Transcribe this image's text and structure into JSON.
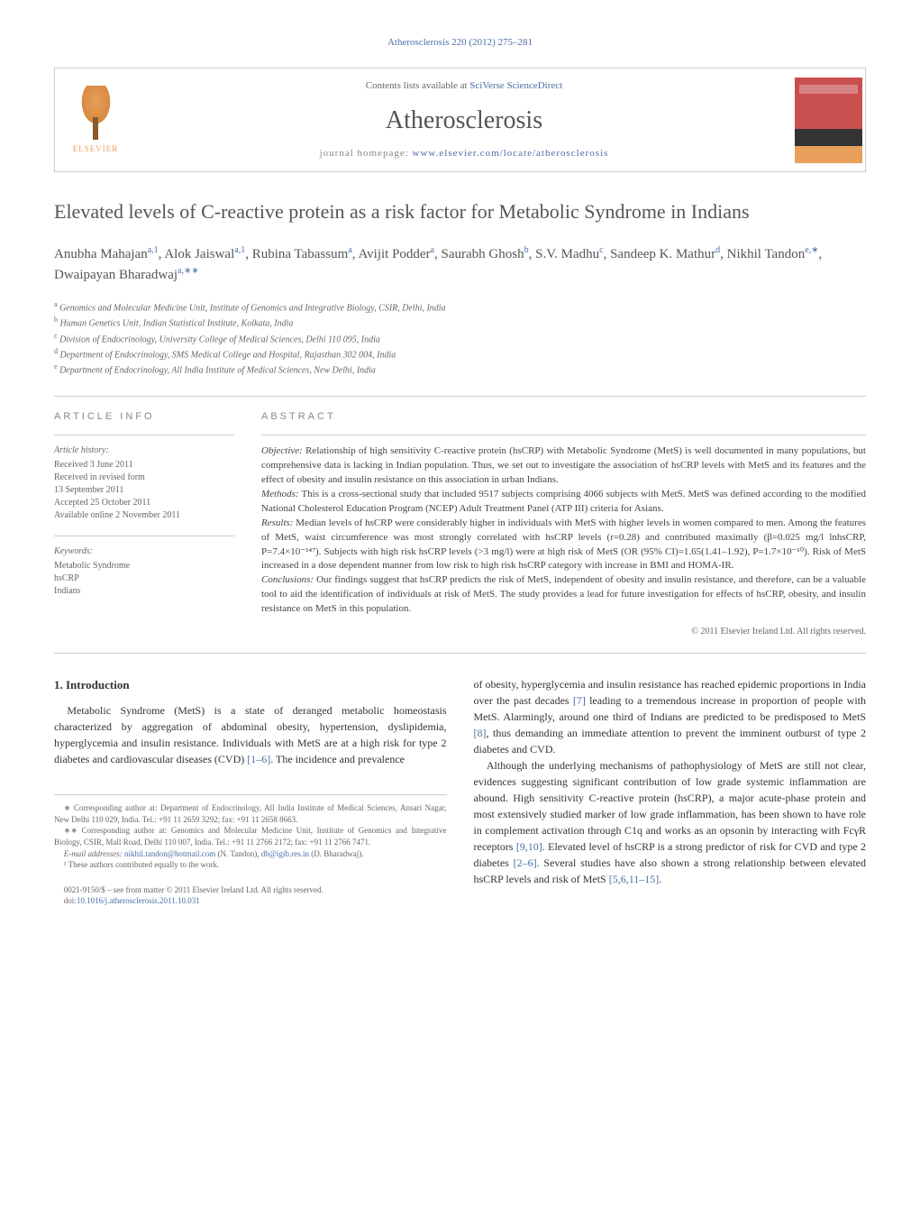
{
  "citation": "Atherosclerosis 220 (2012) 275–281",
  "header": {
    "contents_prefix": "Contents lists available at ",
    "contents_link": "SciVerse ScienceDirect",
    "journal": "Atherosclerosis",
    "homepage_prefix": "journal homepage: ",
    "homepage_link": "www.elsevier.com/locate/atherosclerosis",
    "elsevier_label": "ELSEVIER",
    "cover_label": "atherosclerosis"
  },
  "title": "Elevated levels of C-reactive protein as a risk factor for Metabolic Syndrome in Indians",
  "authors_html": "Anubha Mahajan<sup>a,1</sup>, Alok Jaiswal<sup>a,1</sup>, Rubina Tabassum<sup>a</sup>, Avijit Podder<sup>a</sup>, Saurabh Ghosh<sup>b</sup>, S.V. Madhu<sup>c</sup>, Sandeep K. Mathur<sup>d</sup>, Nikhil Tandon<sup>e,∗</sup>, Dwaipayan Bharadwaj<sup>a,∗∗</sup>",
  "affiliations": [
    "a Genomics and Molecular Medicine Unit, Institute of Genomics and Integrative Biology, CSIR, Delhi, India",
    "b Human Genetics Unit, Indian Statistical Institute, Kolkata, India",
    "c Division of Endocrinology, University College of Medical Sciences, Delhi 110 095, India",
    "d Department of Endocrinology, SMS Medical College and Hospital, Rajasthan 302 004, India",
    "e Department of Endocrinology, All India Institute of Medical Sciences, New Delhi, India"
  ],
  "article_info": {
    "heading": "ARTICLE INFO",
    "history_label": "Article history:",
    "history": [
      "Received 3 June 2011",
      "Received in revised form",
      "13 September 2011",
      "Accepted 25 October 2011",
      "Available online 2 November 2011"
    ],
    "keywords_label": "Keywords:",
    "keywords": [
      "Metabolic Syndrome",
      "hsCRP",
      "Indians"
    ]
  },
  "abstract": {
    "heading": "ABSTRACT",
    "objective_label": "Objective:",
    "objective": "Relationship of high sensitivity C-reactive protein (hsCRP) with Metabolic Syndrome (MetS) is well documented in many populations, but comprehensive data is lacking in Indian population. Thus, we set out to investigate the association of hsCRP levels with MetS and its features and the effect of obesity and insulin resistance on this association in urban Indians.",
    "methods_label": "Methods:",
    "methods": "This is a cross-sectional study that included 9517 subjects comprising 4066 subjects with MetS. MetS was defined according to the modified National Cholesterol Education Program (NCEP) Adult Treatment Panel (ATP III) criteria for Asians.",
    "results_label": "Results:",
    "results": "Median levels of hsCRP were considerably higher in individuals with MetS with higher levels in women compared to men. Among the features of MetS, waist circumference was most strongly correlated with hsCRP levels (r=0.28) and contributed maximally (β=0.025 mg/l lnhsCRP, P=7.4×10⁻¹⁴⁷). Subjects with high risk hsCRP levels (>3 mg/l) were at high risk of MetS (OR (95% CI)=1.65(1.41–1.92), P=1.7×10⁻¹⁰). Risk of MetS increased in a dose dependent manner from low risk to high risk hsCRP category with increase in BMI and HOMA-IR.",
    "conclusions_label": "Conclusions:",
    "conclusions": "Our findings suggest that hsCRP predicts the risk of MetS, independent of obesity and insulin resistance, and therefore, can be a valuable tool to aid the identification of individuals at risk of MetS. The study provides a lead for future investigation for effects of hsCRP, obesity, and insulin resistance on MetS in this population.",
    "copyright": "© 2011 Elsevier Ireland Ltd. All rights reserved."
  },
  "body": {
    "section_num": "1.",
    "section_title": "Introduction",
    "col1_p1": "Metabolic Syndrome (MetS) is a state of deranged metabolic homeostasis characterized by aggregation of abdominal obesity, hypertension, dyslipidemia, hyperglycemia and insulin resistance. Individuals with MetS are at a high risk for type 2 diabetes and cardiovascular diseases (CVD) ",
    "col1_ref1": "[1–6]",
    "col1_p1_tail": ". The incidence and prevalence",
    "col2_p1_a": "of obesity, hyperglycemia and insulin resistance has reached epidemic proportions in India over the past decades ",
    "col2_ref1": "[7]",
    "col2_p1_b": " leading to a tremendous increase in proportion of people with MetS. Alarmingly, around one third of Indians are predicted to be predisposed to MetS ",
    "col2_ref2": "[8]",
    "col2_p1_c": ", thus demanding an immediate attention to prevent the imminent outburst of type 2 diabetes and CVD.",
    "col2_p2_a": "Although the underlying mechanisms of pathophysiology of MetS are still not clear, evidences suggesting significant contribution of low grade systemic inflammation are abound. High sensitivity C-reactive protein (hsCRP), a major acute-phase protein and most extensively studied marker of low grade inflammation, has been shown to have role in complement activation through C1q and works as an opsonin by interacting with FcγR receptors ",
    "col2_ref3": "[9,10]",
    "col2_p2_b": ". Elevated level of hsCRP is a strong predictor of risk for CVD and type 2 diabetes ",
    "col2_ref4": "[2–6]",
    "col2_p2_c": ". Several studies have also shown a strong relationship between elevated hsCRP levels and risk of MetS ",
    "col2_ref5": "[5,6,11–15]",
    "col2_p2_d": "."
  },
  "footnotes": {
    "corr1": "∗ Corresponding author at: Department of Endocrinology, All India Institute of Medical Sciences, Ansari Nagar, New Delhi 110 029, India. Tel.: +91 11 2659 3292; fax: +91 11 2658 8663.",
    "corr2": "∗∗ Corresponding author at: Genomics and Molecular Medicine Unit, Institute of Genomics and Integrative Biology, CSIR, Mall Road, Delhi 110 007, India. Tel.: +91 11 2766 2172; fax: +91 11 2766 7471.",
    "email_label": "E-mail addresses: ",
    "email1": "nikhil.tandon@hotmail.com",
    "email1_who": " (N. Tandon), ",
    "email2": "db@igib.res.in",
    "email2_who": " (D. Bharadwaj).",
    "equal": "¹ These authors contributed equally to the work."
  },
  "bottom": {
    "issn": "0021-9150/$ – see front matter © 2011 Elsevier Ireland Ltd. All rights reserved.",
    "doi_label": "doi:",
    "doi": "10.1016/j.atherosclerosis.2011.10.031"
  },
  "colors": {
    "link": "#4a6fa5",
    "text": "#333333",
    "muted": "#666666",
    "accent_orange": "#e8a05c",
    "cover_red": "#c94f4f"
  }
}
